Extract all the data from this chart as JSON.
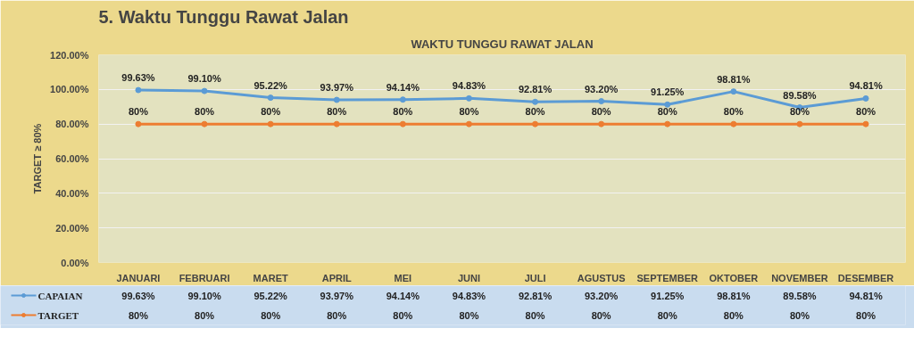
{
  "chart_data": {
    "type": "line",
    "title": "5. Waktu Tunggu Rawat Jalan",
    "subtitle": "WAKTU TUNGGU RAWAT JALAN",
    "ylabel": "TARGET ≥ 80%",
    "categories": [
      "JANUARI",
      "FEBRUARI",
      "MARET",
      "APRIL",
      "MEI",
      "JUNI",
      "JULI",
      "AGUSTUS",
      "SEPTEMBER",
      "OKTOBER",
      "NOVEMBER",
      "DESEMBER"
    ],
    "series": [
      {
        "name": "CAPAIAN",
        "color": "#5b9bd5",
        "values": [
          99.63,
          99.1,
          95.22,
          93.97,
          94.14,
          94.83,
          92.81,
          93.2,
          91.25,
          98.81,
          89.58,
          94.81
        ],
        "value_labels": [
          "99.63%",
          "99.10%",
          "95.22%",
          "93.97%",
          "94.14%",
          "94.83%",
          "92.81%",
          "93.20%",
          "91.25%",
          "98.81%",
          "89.58%",
          "94.81%"
        ]
      },
      {
        "name": "TARGET",
        "color": "#ed7d31",
        "values": [
          80,
          80,
          80,
          80,
          80,
          80,
          80,
          80,
          80,
          80,
          80,
          80
        ],
        "value_labels": [
          "80%",
          "80%",
          "80%",
          "80%",
          "80%",
          "80%",
          "80%",
          "80%",
          "80%",
          "80%",
          "80%",
          "80%"
        ]
      }
    ],
    "ylim": [
      0,
      120
    ],
    "yticks": [
      {
        "value": 0,
        "label": "0.00%"
      },
      {
        "value": 20,
        "label": "20.00%"
      },
      {
        "value": 40,
        "label": "40.00%"
      },
      {
        "value": 60,
        "label": "60.00%"
      },
      {
        "value": 80,
        "label": "80.00%"
      },
      {
        "value": 100,
        "label": "100.00%"
      },
      {
        "value": 120,
        "label": "120.00%"
      }
    ],
    "grid": "y",
    "legend": "bottom",
    "marker": "circle",
    "line_style": "solid"
  }
}
